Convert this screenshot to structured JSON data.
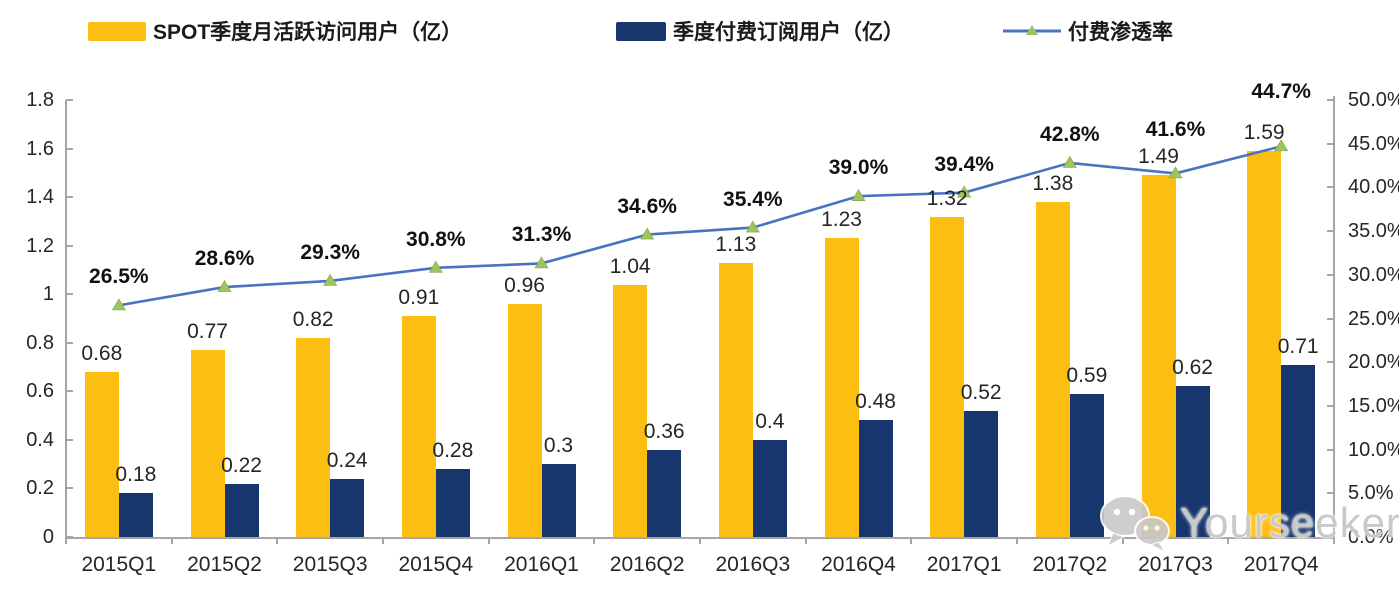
{
  "chart_data": {
    "type": "combo",
    "categories": [
      "2015Q1",
      "2015Q2",
      "2015Q3",
      "2015Q4",
      "2016Q1",
      "2016Q2",
      "2016Q3",
      "2016Q4",
      "2017Q1",
      "2017Q2",
      "2017Q3",
      "2017Q4"
    ],
    "series": [
      {
        "name": "SPOT季度月活跃访问用户（亿）",
        "type": "bar",
        "axis": "left",
        "color": "#FCBE11",
        "values": [
          0.68,
          0.77,
          0.82,
          0.91,
          0.96,
          1.04,
          1.13,
          1.23,
          1.32,
          1.38,
          1.49,
          1.59
        ],
        "labels": [
          "0.68",
          "0.77",
          "0.82",
          "0.91",
          "0.96",
          "1.04",
          "1.13",
          "1.23",
          "1.32",
          "1.38",
          "1.49",
          "1.59"
        ]
      },
      {
        "name": "季度付费订阅用户（亿）",
        "type": "bar",
        "axis": "left",
        "color": "#17366D",
        "values": [
          0.18,
          0.22,
          0.24,
          0.28,
          0.3,
          0.36,
          0.4,
          0.48,
          0.52,
          0.59,
          0.62,
          0.71
        ],
        "labels": [
          "0.18",
          "0.22",
          "0.24",
          "0.28",
          "0.3",
          "0.36",
          "0.4",
          "0.48",
          "0.52",
          "0.59",
          "0.62",
          "0.71"
        ]
      },
      {
        "name": "付费渗透率",
        "type": "line",
        "axis": "right",
        "color": "#4A72C2",
        "marker": "triangle",
        "marker_color": "#9EC45E",
        "values": [
          26.5,
          28.6,
          29.3,
          30.8,
          31.3,
          34.6,
          35.4,
          39.0,
          39.4,
          42.8,
          41.6,
          44.7
        ],
        "labels": [
          "26.5%",
          "28.6%",
          "29.3%",
          "30.8%",
          "31.3%",
          "34.6%",
          "35.4%",
          "39.0%",
          "39.4%",
          "42.8%",
          "41.6%",
          "44.7%"
        ]
      }
    ],
    "left_axis": {
      "min": 0,
      "max": 1.8,
      "ticks": [
        "1.8",
        "1.6",
        "1.4",
        "1.2",
        "1",
        "0.8",
        "0.6",
        "0.4",
        "0.2",
        "0"
      ]
    },
    "right_axis": {
      "min": 0,
      "max": 50,
      "ticks": [
        "50.0%",
        "45.0%",
        "40.0%",
        "35.0%",
        "30.0%",
        "25.0%",
        "20.0%",
        "15.0%",
        "10.0%",
        "5.0%",
        "0.0%"
      ]
    },
    "grid": false,
    "legend_position": "top"
  },
  "watermark": {
    "text": "Yourseeker",
    "icon": "wechat-icon"
  },
  "colors": {
    "axis": "#A6A6A6",
    "label_text": "#262626"
  }
}
